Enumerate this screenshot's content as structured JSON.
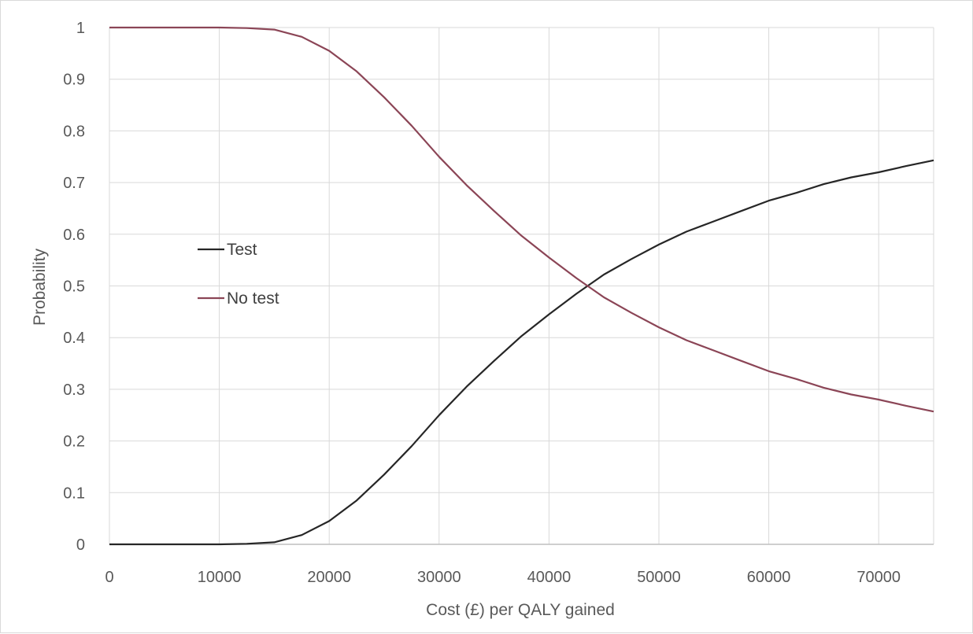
{
  "chart_data": {
    "type": "line",
    "xlabel": "Cost (£) per QALY gained",
    "ylabel": "Probability",
    "xlim": [
      0,
      75000
    ],
    "ylim": [
      0,
      1
    ],
    "xticks": [
      "0",
      "10000",
      "20000",
      "30000",
      "40000",
      "50000",
      "60000",
      "70000"
    ],
    "yticks": [
      "0",
      "0.1",
      "0.2",
      "0.3",
      "0.4",
      "0.5",
      "0.6",
      "0.7",
      "0.8",
      "0.9",
      "1"
    ],
    "grid": "horizontal and vertical",
    "legend_position": "left",
    "series": [
      {
        "name": "Test",
        "color": "#262626",
        "x": [
          0,
          5000,
          10000,
          12500,
          15000,
          17500,
          20000,
          22500,
          25000,
          27500,
          30000,
          32500,
          35000,
          37500,
          40000,
          42500,
          45000,
          47500,
          50000,
          52500,
          55000,
          57500,
          60000,
          62500,
          65000,
          67500,
          70000,
          72500,
          75000
        ],
        "values": [
          0,
          0,
          0,
          0.001,
          0.004,
          0.018,
          0.045,
          0.085,
          0.135,
          0.19,
          0.25,
          0.305,
          0.355,
          0.403,
          0.445,
          0.485,
          0.522,
          0.552,
          0.58,
          0.605,
          0.625,
          0.645,
          0.665,
          0.68,
          0.697,
          0.71,
          0.72,
          0.732,
          0.743
        ]
      },
      {
        "name": "No test",
        "color": "#8b4556",
        "x": [
          0,
          5000,
          10000,
          12500,
          15000,
          17500,
          20000,
          22500,
          25000,
          27500,
          30000,
          32500,
          35000,
          37500,
          40000,
          42500,
          45000,
          47500,
          50000,
          52500,
          55000,
          57500,
          60000,
          62500,
          65000,
          67500,
          70000,
          72500,
          75000
        ],
        "values": [
          1,
          1,
          1,
          0.999,
          0.996,
          0.982,
          0.955,
          0.915,
          0.865,
          0.81,
          0.75,
          0.695,
          0.645,
          0.597,
          0.555,
          0.515,
          0.478,
          0.448,
          0.42,
          0.395,
          0.375,
          0.355,
          0.335,
          0.32,
          0.303,
          0.29,
          0.28,
          0.268,
          0.257
        ]
      }
    ]
  }
}
